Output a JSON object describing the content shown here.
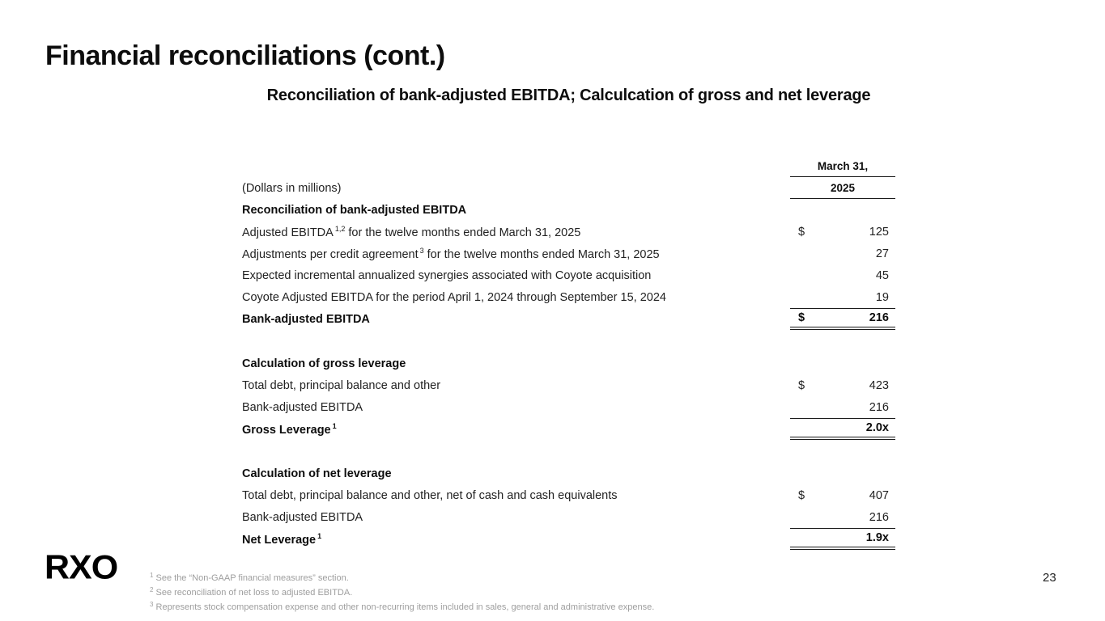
{
  "slide": {
    "title": "Financial reconciliations (cont.)",
    "subtitle": "Reconciliation of bank-adjusted EBITDA; Calculcation of gross and net leverage",
    "logo_text": "RXO",
    "page_number": "23"
  },
  "table": {
    "col_header_line1": "March 31,",
    "col_header_line2": "2025",
    "units_note": "(Dollars in millions)",
    "sections": [
      {
        "heading": "Reconciliation of bank-adjusted EBITDA",
        "rows": [
          {
            "label": "Adjusted EBITDA",
            "sup": "1,2",
            "label_rest": " for the twelve months ended March 31, 2025",
            "dollar": "$",
            "value": "125",
            "total": false
          },
          {
            "label": "Adjustments per credit agreement",
            "sup": "3",
            "label_rest": " for the twelve months ended March 31, 2025",
            "dollar": "",
            "value": "27",
            "total": false
          },
          {
            "label": "Expected incremental annualized synergies associated with Coyote acquisition",
            "sup": "",
            "label_rest": "",
            "dollar": "",
            "value": "45",
            "total": false
          },
          {
            "label": "Coyote Adjusted EBITDA for the period April 1, 2024 through September 15, 2024",
            "sup": "",
            "label_rest": "",
            "dollar": "",
            "value": "19",
            "total": false
          },
          {
            "label": "Bank-adjusted EBITDA",
            "sup": "",
            "label_rest": "",
            "dollar": "$",
            "value": "216",
            "total": true
          }
        ]
      },
      {
        "heading": "Calculation of gross leverage",
        "rows": [
          {
            "label": "Total debt, principal balance and other",
            "sup": "",
            "label_rest": "",
            "dollar": "$",
            "value": "423",
            "total": false
          },
          {
            "label": "Bank-adjusted EBITDA",
            "sup": "",
            "label_rest": "",
            "dollar": "",
            "value": "216",
            "total": false
          },
          {
            "label": "Gross Leverage",
            "sup": "1",
            "label_rest": "",
            "dollar": "",
            "value": "2.0x",
            "total": true
          }
        ]
      },
      {
        "heading": "Calculation of net leverage",
        "rows": [
          {
            "label": "Total debt, principal balance and other, net of cash and cash equivalents",
            "sup": "",
            "label_rest": "",
            "dollar": "$",
            "value": "407",
            "total": false
          },
          {
            "label": "Bank-adjusted EBITDA",
            "sup": "",
            "label_rest": "",
            "dollar": "",
            "value": "216",
            "total": false
          },
          {
            "label": "Net Leverage",
            "sup": "1",
            "label_rest": "",
            "dollar": "",
            "value": "1.9x",
            "total": true
          }
        ]
      }
    ]
  },
  "footnotes": [
    {
      "sup": "1",
      "text": "See the “Non-GAAP financial measures” section."
    },
    {
      "sup": "2",
      "text": "See reconciliation of net loss to adjusted EBITDA."
    },
    {
      "sup": "3",
      "text": "Represents stock compensation expense and other non-recurring items included in sales, general and administrative expense."
    }
  ]
}
